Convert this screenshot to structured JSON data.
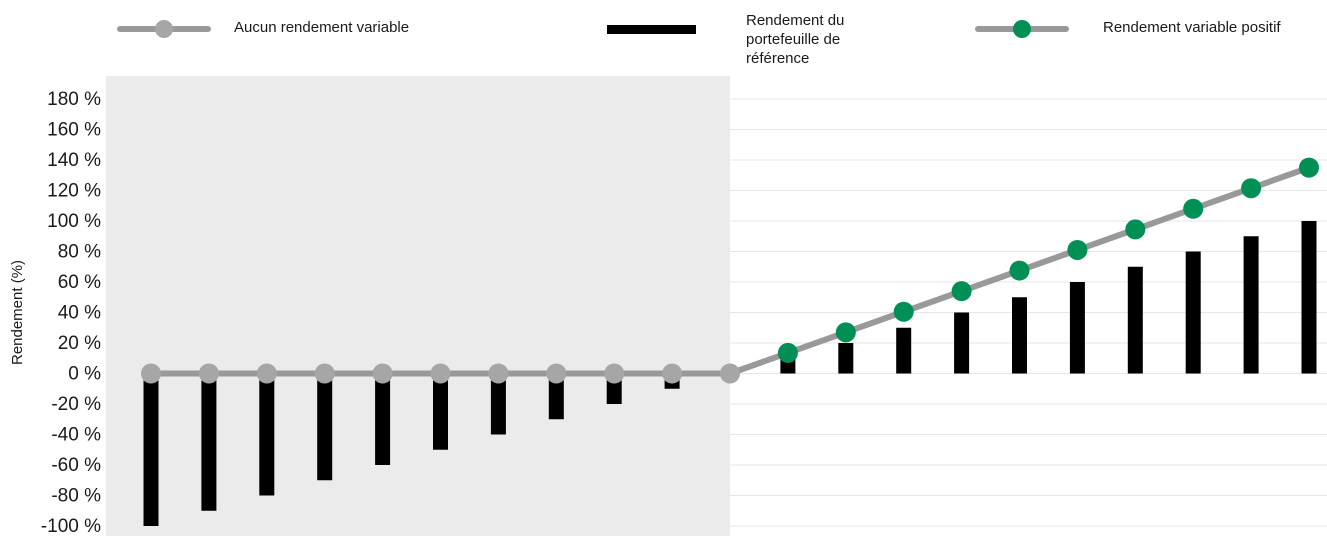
{
  "chart_data": {
    "type": "bar",
    "title": "",
    "xlabel": "",
    "ylabel": "Rendement (%)",
    "ylim": [
      -100,
      180
    ],
    "y_ticks": [
      180,
      160,
      140,
      120,
      100,
      80,
      60,
      40,
      20,
      0,
      -20,
      -40,
      -60,
      -80,
      -100
    ],
    "y_tick_labels": [
      "180 %",
      "160 %",
      "140 %",
      "120 %",
      "100 %",
      "80 %",
      "60 %",
      "40 %",
      "20 %",
      "0 %",
      "-20 %",
      "-40 %",
      "-60 %",
      "-80 %",
      "-100 %"
    ],
    "grid": true,
    "legend_placement": "top",
    "shaded_region": "negative reference returns",
    "reference_portfolio_returns": [
      -100,
      -90,
      -80,
      -70,
      -60,
      -50,
      -40,
      -30,
      -20,
      -10,
      0,
      10,
      20,
      30,
      40,
      50,
      60,
      70,
      80,
      90,
      100
    ],
    "series": [
      {
        "name": "Aucun rendement variable",
        "type": "line",
        "values": [
          0,
          0,
          0,
          0,
          0,
          0,
          0,
          0,
          0,
          0,
          0
        ]
      },
      {
        "name": "Rendement du portefeuille de référence",
        "type": "bar",
        "values": [
          -100,
          -90,
          -80,
          -70,
          -60,
          -50,
          -40,
          -30,
          -20,
          -10,
          0,
          10,
          20,
          30,
          40,
          50,
          60,
          70,
          80,
          90,
          100
        ]
      },
      {
        "name": "Rendement variable positif",
        "type": "line",
        "values": [
          13.5,
          27,
          40.5,
          54,
          67.5,
          81,
          94.5,
          108,
          121.5,
          135
        ]
      }
    ]
  },
  "legend": {
    "items": [
      {
        "label": "Aucun rendement variable",
        "color": "#a0a0a0"
      },
      {
        "label": "Rendement du portefeuille de référence",
        "color": "#000000"
      },
      {
        "label": "Rendement variable positif",
        "color": "#008f55"
      }
    ]
  },
  "colors": {
    "shaded_background": "#ebebeb",
    "gridline": "#e6e6e6",
    "line": "#999999",
    "grey_marker": "#a6a6a6",
    "green_marker": "#008f55",
    "bar": "#000000"
  }
}
